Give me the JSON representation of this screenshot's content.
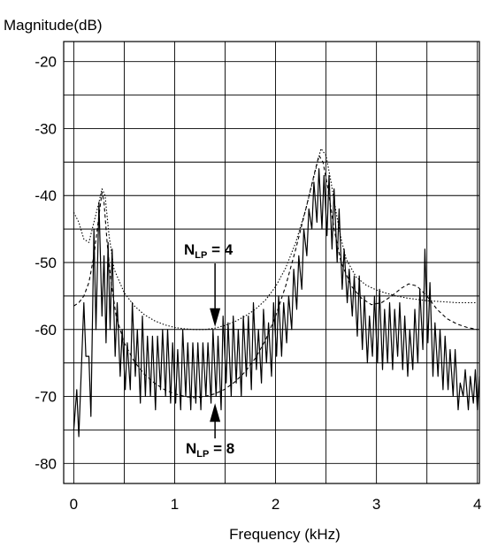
{
  "chart_data": {
    "type": "line",
    "title": "",
    "xlabel": "Frequency (kHz)",
    "ylabel": "Magnitude(dB)",
    "xlim": [
      -0.1,
      4.02
    ],
    "ylim": [
      -83,
      -17
    ],
    "x_ticks": [
      "0",
      "1",
      "2",
      "3",
      "4"
    ],
    "y_ticks": [
      "-20",
      "-30",
      "-40",
      "-50",
      "-60",
      "-70",
      "-80"
    ],
    "grid": true,
    "legend": "none",
    "colors": {
      "line": "#000000",
      "grid": "#000000",
      "background": "#ffffff"
    },
    "annotations": [
      {
        "id": "nlp4",
        "main": "N",
        "sub": "LP",
        "rest": " = 4",
        "arrow": "down",
        "points_to": [
          1.4,
          -60
        ]
      },
      {
        "id": "nlp8",
        "main": "N",
        "sub": "LP",
        "rest": " = 8",
        "arrow": "up",
        "points_to": [
          1.4,
          -70.5
        ]
      }
    ],
    "series": [
      {
        "style": "solid",
        "peaks": [
          [
            0.0,
            -75
          ],
          [
            0.03,
            -69
          ],
          [
            0.1,
            -56
          ],
          [
            0.15,
            -64
          ],
          [
            0.2,
            -45
          ],
          [
            0.25,
            -41
          ],
          [
            0.3,
            -49
          ],
          [
            0.34,
            -47
          ],
          [
            0.38,
            -48
          ],
          [
            0.43,
            -56
          ],
          [
            0.48,
            -60
          ],
          [
            0.53,
            -62
          ],
          [
            0.58,
            -56
          ],
          [
            0.63,
            -60
          ],
          [
            0.68,
            -58
          ],
          [
            0.73,
            -61
          ],
          [
            0.78,
            -61
          ],
          [
            0.83,
            -61
          ],
          [
            0.88,
            -60
          ],
          [
            0.93,
            -60
          ],
          [
            0.98,
            -62
          ],
          [
            1.03,
            -63
          ],
          [
            1.08,
            -60
          ],
          [
            1.13,
            -62
          ],
          [
            1.18,
            -62
          ],
          [
            1.23,
            -62
          ],
          [
            1.28,
            -62
          ],
          [
            1.33,
            -62
          ],
          [
            1.38,
            -60
          ],
          [
            1.43,
            -61
          ],
          [
            1.48,
            -58
          ],
          [
            1.53,
            -59
          ],
          [
            1.58,
            -58
          ],
          [
            1.63,
            -60
          ],
          [
            1.68,
            -58
          ],
          [
            1.73,
            -58
          ],
          [
            1.78,
            -56
          ],
          [
            1.83,
            -60
          ],
          [
            1.88,
            -57
          ],
          [
            1.93,
            -59
          ],
          [
            1.98,
            -56
          ],
          [
            2.03,
            -55
          ],
          [
            2.08,
            -56
          ],
          [
            2.13,
            -55
          ],
          [
            2.18,
            -51
          ],
          [
            2.23,
            -49
          ],
          [
            2.28,
            -45
          ],
          [
            2.33,
            -42
          ],
          [
            2.38,
            -38
          ],
          [
            2.43,
            -36
          ],
          [
            2.48,
            -37
          ],
          [
            2.53,
            -37
          ],
          [
            2.58,
            -39
          ],
          [
            2.63,
            -42
          ],
          [
            2.68,
            -48
          ],
          [
            2.73,
            -51
          ],
          [
            2.78,
            -52
          ],
          [
            2.83,
            -52
          ],
          [
            2.88,
            -55
          ],
          [
            2.93,
            -58
          ],
          [
            2.98,
            -55
          ],
          [
            3.03,
            -54
          ],
          [
            3.08,
            -57
          ],
          [
            3.13,
            -56
          ],
          [
            3.18,
            -57
          ],
          [
            3.23,
            -56
          ],
          [
            3.28,
            -58
          ],
          [
            3.33,
            -60
          ],
          [
            3.38,
            -57
          ],
          [
            3.43,
            -54
          ],
          [
            3.48,
            -48
          ],
          [
            3.53,
            -53
          ],
          [
            3.58,
            -59
          ],
          [
            3.63,
            -60
          ],
          [
            3.68,
            -61
          ],
          [
            3.73,
            -63
          ],
          [
            3.78,
            -63
          ],
          [
            3.83,
            -68
          ],
          [
            3.88,
            -66
          ],
          [
            3.93,
            -67
          ],
          [
            3.98,
            -66
          ],
          [
            4.02,
            -67
          ]
        ],
        "notches": [
          [
            0.05,
            -76
          ],
          [
            0.12,
            -64
          ],
          [
            0.17,
            -73
          ],
          [
            0.22,
            -60
          ],
          [
            0.28,
            -58
          ],
          [
            0.32,
            -62
          ],
          [
            0.36,
            -60
          ],
          [
            0.41,
            -64
          ],
          [
            0.46,
            -67
          ],
          [
            0.51,
            -69
          ],
          [
            0.56,
            -69
          ],
          [
            0.61,
            -67
          ],
          [
            0.66,
            -71
          ],
          [
            0.71,
            -70
          ],
          [
            0.76,
            -70
          ],
          [
            0.81,
            -72
          ],
          [
            0.86,
            -69
          ],
          [
            0.91,
            -70
          ],
          [
            0.96,
            -71
          ],
          [
            1.01,
            -71
          ],
          [
            1.06,
            -72
          ],
          [
            1.11,
            -70
          ],
          [
            1.16,
            -72
          ],
          [
            1.21,
            -71
          ],
          [
            1.26,
            -72
          ],
          [
            1.31,
            -70
          ],
          [
            1.36,
            -71
          ],
          [
            1.41,
            -70
          ],
          [
            1.46,
            -72
          ],
          [
            1.51,
            -68
          ],
          [
            1.56,
            -70
          ],
          [
            1.61,
            -68
          ],
          [
            1.66,
            -70
          ],
          [
            1.71,
            -67
          ],
          [
            1.76,
            -69
          ],
          [
            1.81,
            -66
          ],
          [
            1.86,
            -68
          ],
          [
            1.91,
            -65
          ],
          [
            1.96,
            -67
          ],
          [
            2.01,
            -64
          ],
          [
            2.06,
            -64
          ],
          [
            2.11,
            -62
          ],
          [
            2.16,
            -60
          ],
          [
            2.21,
            -57
          ],
          [
            2.26,
            -54
          ],
          [
            2.31,
            -49
          ],
          [
            2.36,
            -45
          ],
          [
            2.41,
            -44
          ],
          [
            2.46,
            -45
          ],
          [
            2.51,
            -46
          ],
          [
            2.56,
            -48
          ],
          [
            2.61,
            -50
          ],
          [
            2.66,
            -54
          ],
          [
            2.71,
            -56
          ],
          [
            2.76,
            -58
          ],
          [
            2.81,
            -61
          ],
          [
            2.86,
            -63
          ],
          [
            2.91,
            -65
          ],
          [
            2.96,
            -64
          ],
          [
            3.01,
            -65
          ],
          [
            3.06,
            -66
          ],
          [
            3.11,
            -65
          ],
          [
            3.16,
            -66
          ],
          [
            3.21,
            -64
          ],
          [
            3.26,
            -66
          ],
          [
            3.31,
            -67
          ],
          [
            3.36,
            -66
          ],
          [
            3.41,
            -65
          ],
          [
            3.46,
            -63
          ],
          [
            3.51,
            -62
          ],
          [
            3.56,
            -67
          ],
          [
            3.61,
            -67
          ],
          [
            3.66,
            -69
          ],
          [
            3.71,
            -69
          ],
          [
            3.76,
            -70
          ],
          [
            3.81,
            -72
          ],
          [
            3.86,
            -70
          ],
          [
            3.91,
            -72
          ],
          [
            3.96,
            -71
          ],
          [
            4.0,
            -72
          ]
        ]
      },
      {
        "style": "dotted",
        "points": [
          [
            0.0,
            -42.5
          ],
          [
            0.05,
            -44
          ],
          [
            0.1,
            -46.5
          ],
          [
            0.15,
            -47
          ],
          [
            0.2,
            -44
          ],
          [
            0.25,
            -41
          ],
          [
            0.28,
            -39
          ],
          [
            0.31,
            -40
          ],
          [
            0.35,
            -46
          ],
          [
            0.4,
            -51
          ],
          [
            0.5,
            -54.5
          ],
          [
            0.6,
            -56.5
          ],
          [
            0.7,
            -57.8
          ],
          [
            0.8,
            -58.7
          ],
          [
            0.9,
            -59.3
          ],
          [
            1.0,
            -59.7
          ],
          [
            1.1,
            -59.9
          ],
          [
            1.2,
            -60
          ],
          [
            1.3,
            -60
          ],
          [
            1.4,
            -59.8
          ],
          [
            1.5,
            -59.4
          ],
          [
            1.6,
            -58.8
          ],
          [
            1.7,
            -58
          ],
          [
            1.8,
            -57
          ],
          [
            1.9,
            -55.6
          ],
          [
            2.0,
            -53.6
          ],
          [
            2.1,
            -50.8
          ],
          [
            2.2,
            -47
          ],
          [
            2.3,
            -42
          ],
          [
            2.4,
            -36
          ],
          [
            2.45,
            -33
          ],
          [
            2.5,
            -34
          ],
          [
            2.55,
            -38
          ],
          [
            2.6,
            -42.5
          ],
          [
            2.65,
            -46.5
          ],
          [
            2.7,
            -49.5
          ],
          [
            2.8,
            -52.2
          ],
          [
            2.9,
            -53.4
          ],
          [
            3.0,
            -54.1
          ],
          [
            3.1,
            -54.6
          ],
          [
            3.2,
            -55
          ],
          [
            3.3,
            -55.3
          ],
          [
            3.4,
            -55.5
          ],
          [
            3.5,
            -55.7
          ],
          [
            3.6,
            -55.8
          ],
          [
            3.7,
            -55.9
          ],
          [
            3.8,
            -56
          ],
          [
            3.9,
            -56
          ],
          [
            4.0,
            -56
          ]
        ]
      },
      {
        "style": "dashed",
        "points": [
          [
            0.0,
            -56.5
          ],
          [
            0.05,
            -56
          ],
          [
            0.1,
            -55
          ],
          [
            0.15,
            -53
          ],
          [
            0.2,
            -49
          ],
          [
            0.25,
            -43
          ],
          [
            0.28,
            -39.5
          ],
          [
            0.3,
            -41
          ],
          [
            0.33,
            -47
          ],
          [
            0.37,
            -53
          ],
          [
            0.42,
            -58
          ],
          [
            0.5,
            -62
          ],
          [
            0.6,
            -64.8
          ],
          [
            0.7,
            -66.7
          ],
          [
            0.8,
            -68
          ],
          [
            0.9,
            -69
          ],
          [
            1.0,
            -69.6
          ],
          [
            1.1,
            -70
          ],
          [
            1.2,
            -70.2
          ],
          [
            1.3,
            -70
          ],
          [
            1.4,
            -69.6
          ],
          [
            1.5,
            -68.9
          ],
          [
            1.6,
            -67.8
          ],
          [
            1.7,
            -66.3
          ],
          [
            1.8,
            -64.3
          ],
          [
            1.9,
            -61.6
          ],
          [
            2.0,
            -58
          ],
          [
            2.1,
            -53.5
          ],
          [
            2.2,
            -48
          ],
          [
            2.3,
            -42
          ],
          [
            2.38,
            -37
          ],
          [
            2.43,
            -34
          ],
          [
            2.47,
            -35
          ],
          [
            2.52,
            -39
          ],
          [
            2.58,
            -45
          ],
          [
            2.65,
            -50
          ],
          [
            2.75,
            -53.5
          ],
          [
            2.85,
            -55.3
          ],
          [
            2.95,
            -56.3
          ],
          [
            3.05,
            -56
          ],
          [
            3.15,
            -55
          ],
          [
            3.25,
            -53.8
          ],
          [
            3.32,
            -53.2
          ],
          [
            3.4,
            -53.5
          ],
          [
            3.5,
            -55
          ],
          [
            3.6,
            -57
          ],
          [
            3.7,
            -58.4
          ],
          [
            3.8,
            -59.2
          ],
          [
            3.9,
            -59.7
          ],
          [
            4.0,
            -60
          ]
        ]
      }
    ]
  }
}
